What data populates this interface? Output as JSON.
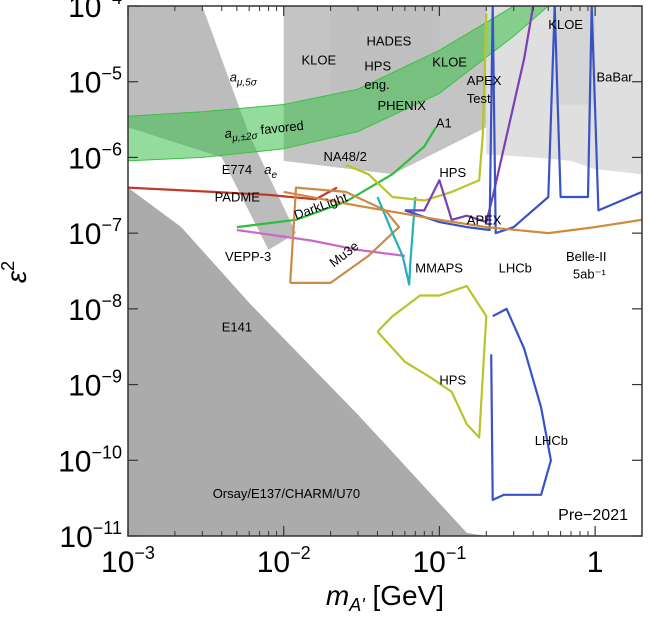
{
  "chart_data": {
    "type": "area",
    "title": "",
    "xlabel_symbol": "m",
    "xlabel_sub": "A'",
    "xlabel_unit": " [GeV]",
    "ylabel_symbol": "ε",
    "ylabel_sup": "2",
    "xscale": "log",
    "yscale": "log",
    "xlim": [
      0.001,
      2
    ],
    "ylim": [
      1e-11,
      0.0001
    ],
    "x_ticks": [
      {
        "value": 0.001,
        "base": "10",
        "exp": "−3"
      },
      {
        "value": 0.01,
        "base": "10",
        "exp": "−2"
      },
      {
        "value": 0.1,
        "base": "10",
        "exp": "−1"
      },
      {
        "value": 1,
        "base": "1",
        "exp": ""
      }
    ],
    "y_ticks": [
      {
        "value": 1e-11,
        "base": "10",
        "exp": "−11"
      },
      {
        "value": 1e-10,
        "base": "10",
        "exp": "−10"
      },
      {
        "value": 1e-09,
        "base": "10",
        "exp": "−9"
      },
      {
        "value": 1e-08,
        "base": "10",
        "exp": "−8"
      },
      {
        "value": 1e-07,
        "base": "10",
        "exp": "−7"
      },
      {
        "value": 1e-06,
        "base": "10",
        "exp": "−6"
      },
      {
        "value": 1e-05,
        "base": "10",
        "exp": "−5"
      },
      {
        "value": 0.0001,
        "base": "10",
        "exp": "−4"
      }
    ],
    "corner_label": "Pre−2021",
    "regions": [
      {
        "name": "Orsay/E137/CHARM/U70",
        "color": "#8f8f8f",
        "style": "fill",
        "note": "beam dump (lower-left gray band)",
        "points": [
          [
            0.001,
            1e-11
          ],
          [
            0.001,
            4e-07
          ],
          [
            0.0022,
            1.2e-07
          ],
          [
            0.006,
            1.2e-08
          ],
          [
            0.03,
            4e-10
          ],
          [
            0.15,
            1.1e-11
          ],
          [
            0.2,
            1e-11
          ]
        ]
      },
      {
        "name": "E141",
        "color": "#a6a6a6",
        "style": "fill",
        "points": [
          [
            0.001,
            0.0001
          ],
          [
            0.001,
            2.5e-06
          ],
          [
            0.004,
            1e-06
          ],
          [
            0.008,
            6e-08
          ],
          [
            0.012,
            1e-07
          ],
          [
            0.006,
            2e-06
          ],
          [
            0.003,
            0.0001
          ]
        ]
      },
      {
        "name": "KLOE",
        "color": "#b0b0b0",
        "style": "fill",
        "points": [
          [
            0.01,
            0.0001
          ],
          [
            0.01,
            9e-07
          ],
          [
            0.05,
            6e-07
          ],
          [
            0.2,
            2.5e-06
          ],
          [
            0.2,
            0.0001
          ]
        ]
      },
      {
        "name": "HADES",
        "color": "#bfbfbf",
        "style": "fill",
        "points": [
          [
            0.02,
            0.0001
          ],
          [
            0.02,
            7e-06
          ],
          [
            0.06,
            5e-06
          ],
          [
            0.1,
            8e-06
          ],
          [
            0.1,
            0.0001
          ]
        ]
      },
      {
        "name": "KLOE",
        "color": "#c8c8c8",
        "style": "fill",
        "note": "high-mass region",
        "points": [
          [
            0.55,
            0.0001
          ],
          [
            0.55,
            5e-06
          ],
          [
            1.0,
            5e-06
          ],
          [
            1.0,
            0.0001
          ]
        ]
      },
      {
        "name": "BaBar",
        "color": "#d4d4d4",
        "style": "fill",
        "points": [
          [
            0.2,
            1.1e-06
          ],
          [
            0.4,
            1e-06
          ],
          [
            0.7,
            9e-07
          ],
          [
            1.0,
            7e-07
          ],
          [
            2.0,
            6e-07
          ],
          [
            2.0,
            0.0001
          ],
          [
            0.2,
            0.0001
          ]
        ]
      }
    ],
    "series": [
      {
        "name": "a_μ,±2σ favored",
        "color": "#3cbf4a",
        "style": "band",
        "lower": [
          [
            0.001,
            9e-07
          ],
          [
            0.003,
            1e-06
          ],
          [
            0.01,
            1.3e-06
          ],
          [
            0.03,
            2.2e-06
          ],
          [
            0.1,
            7e-06
          ],
          [
            0.3,
            4e-05
          ],
          [
            0.5,
            0.0001
          ]
        ],
        "upper": [
          [
            0.001,
            3.5e-06
          ],
          [
            0.003,
            4e-06
          ],
          [
            0.01,
            5e-06
          ],
          [
            0.03,
            8e-06
          ],
          [
            0.1,
            2.6e-05
          ],
          [
            0.3,
            0.0001
          ]
        ]
      },
      {
        "name": "PADME",
        "color": "#c0392b",
        "style": "line",
        "points": [
          [
            0.001,
            4e-07
          ],
          [
            0.0035,
            3.5e-07
          ],
          [
            0.008,
            3.2e-07
          ],
          [
            0.016,
            2.8e-07
          ],
          [
            0.022,
            4e-07
          ]
        ]
      },
      {
        "name": "DarkLight",
        "color": "#2bbf3c",
        "style": "line",
        "points": [
          [
            0.005,
            1.2e-07
          ],
          [
            0.012,
            1.5e-07
          ],
          [
            0.025,
            2.6e-07
          ],
          [
            0.05,
            6e-07
          ],
          [
            0.08,
            1.4e-06
          ],
          [
            0.095,
            2.5e-06
          ]
        ]
      },
      {
        "name": "VEPP-3",
        "color": "#cc66cc",
        "style": "line",
        "points": [
          [
            0.005,
            1.1e-07
          ],
          [
            0.015,
            8e-08
          ],
          [
            0.03,
            6e-08
          ],
          [
            0.06,
            5e-08
          ]
        ]
      },
      {
        "name": "Mu3e",
        "color": "#c98b4a",
        "style": "line",
        "points": [
          [
            0.011,
            2.2e-08
          ],
          [
            0.02,
            2.2e-08
          ],
          [
            0.035,
            5e-08
          ],
          [
            0.055,
            1.2e-07
          ],
          [
            0.045,
            2e-07
          ],
          [
            0.025,
            3.5e-07
          ],
          [
            0.012,
            4e-07
          ],
          [
            0.011,
            2.2e-08
          ]
        ]
      },
      {
        "name": "MMAPS",
        "color": "#22b1b8",
        "style": "line",
        "points": [
          [
            0.04,
            3e-07
          ],
          [
            0.05,
            1e-07
          ],
          [
            0.058,
            5e-08
          ],
          [
            0.064,
            2.1e-08
          ],
          [
            0.065,
            4e-08
          ],
          [
            0.07,
            3e-07
          ]
        ]
      },
      {
        "name": "HPS",
        "color": "#b7c42a",
        "style": "line",
        "note": "upper contour",
        "points": [
          [
            0.025,
            8e-07
          ],
          [
            0.035,
            6e-07
          ],
          [
            0.05,
            3e-07
          ],
          [
            0.08,
            2.7e-07
          ],
          [
            0.12,
            3.5e-07
          ],
          [
            0.18,
            5e-07
          ],
          [
            0.19,
            2e-06
          ],
          [
            0.2,
            8e-05
          ]
        ]
      },
      {
        "name": "HPS",
        "color": "#b7c42a",
        "style": "line",
        "note": "lower islands",
        "points": [
          [
            0.04,
            5e-09
          ],
          [
            0.05,
            8e-09
          ],
          [
            0.075,
            1.5e-08
          ],
          [
            0.1,
            1.5e-08
          ],
          [
            0.15,
            2e-08
          ],
          [
            0.2,
            8e-09
          ],
          [
            0.18,
            2e-10
          ],
          [
            0.15,
            3e-10
          ],
          [
            0.12,
            8e-10
          ],
          [
            0.09,
            1.2e-09
          ],
          [
            0.06,
            2e-09
          ],
          [
            0.04,
            5e-09
          ]
        ]
      },
      {
        "name": "APEX",
        "color": "#7b3fb5",
        "style": "line",
        "points": [
          [
            0.06,
            2e-07
          ],
          [
            0.08,
            2e-07
          ],
          [
            0.1,
            5e-07
          ],
          [
            0.12,
            1.5e-07
          ],
          [
            0.15,
            1.7e-07
          ],
          [
            0.2,
            1.4e-07
          ],
          [
            0.22,
            3e-07
          ],
          [
            0.35,
            2e-05
          ],
          [
            0.4,
            0.0001
          ]
        ]
      },
      {
        "name": "LHCb",
        "color": "#3a52c7",
        "style": "line",
        "points": [
          [
            0.06,
            2e-07
          ],
          [
            0.1,
            1.4e-07
          ],
          [
            0.15,
            1.2e-07
          ],
          [
            0.21,
            1.1e-07
          ],
          [
            0.22,
            0.0001
          ],
          [
            0.23,
            1e-07
          ],
          [
            0.3,
            1.2e-07
          ],
          [
            0.5,
            3e-07
          ],
          [
            0.55,
            0.0001
          ],
          [
            0.6,
            3e-07
          ],
          [
            0.9,
            3e-07
          ],
          [
            0.95,
            0.0001
          ],
          [
            1.05,
            2e-07
          ],
          [
            2.0,
            3.5e-07
          ]
        ]
      },
      {
        "name": "LHCb",
        "color": "#3a52c7",
        "style": "line",
        "note": "lower loop",
        "points": [
          [
            0.215,
            2.5e-09
          ],
          [
            0.22,
            3e-11
          ],
          [
            0.26,
            3.5e-11
          ],
          [
            0.45,
            3.5e-11
          ],
          [
            0.52,
            1e-10
          ],
          [
            0.45,
            5e-10
          ],
          [
            0.35,
            3e-09
          ],
          [
            0.27,
            1e-08
          ],
          [
            0.22,
            8e-09
          ]
        ]
      },
      {
        "name": "Belle-II 5ab⁻¹",
        "color": "#d08a3f",
        "style": "line",
        "points": [
          [
            0.01,
            3.5e-07
          ],
          [
            0.03,
            2.3e-07
          ],
          [
            0.1,
            1.5e-07
          ],
          [
            0.2,
            1.2e-07
          ],
          [
            0.5,
            1e-07
          ],
          [
            1.0,
            1.2e-07
          ],
          [
            2.0,
            1.5e-07
          ]
        ]
      }
    ],
    "annotations": [
      {
        "text": "KLOE",
        "x": 0.013,
        "y": 1.7e-05,
        "color": "#000000"
      },
      {
        "text": "HADES",
        "x": 0.034,
        "y": 3e-05,
        "color": "#000000"
      },
      {
        "text": "HPS",
        "x": 0.033,
        "y": 1.4e-05,
        "color": "#000000"
      },
      {
        "text": "eng.",
        "x": 0.033,
        "y": 8e-06,
        "color": "#000000"
      },
      {
        "text": "KLOE",
        "x": 0.09,
        "y": 1.6e-05,
        "color": "#000000"
      },
      {
        "text": "APEX",
        "x": 0.15,
        "y": 9e-06,
        "color": "#000000"
      },
      {
        "text": "Test",
        "x": 0.15,
        "y": 5.2e-06,
        "color": "#000000"
      },
      {
        "text": "PHENIX",
        "x": 0.04,
        "y": 4.2e-06,
        "color": "#000000"
      },
      {
        "text": "A1",
        "x": 0.095,
        "y": 2.5e-06,
        "color": "#000000"
      },
      {
        "text": "KLOE",
        "x": 0.5,
        "y": 5e-05,
        "color": "#000000"
      },
      {
        "text": "BaBar",
        "x": 1.02,
        "y": 1e-05,
        "color": "#000000"
      },
      {
        "text": "NA48/2",
        "x": 0.018,
        "y": 9e-07,
        "color": "#000000"
      },
      {
        "text": "E774",
        "x": 0.004,
        "y": 6e-07,
        "color": "#000000"
      },
      {
        "text": "E141",
        "x": 0.004,
        "y": 5e-09,
        "color": "#000000"
      },
      {
        "text": "HPS",
        "x": 0.1,
        "y": 5.5e-07,
        "color": "#8f9a12"
      },
      {
        "text": "APEX",
        "x": 0.15,
        "y": 1.3e-07,
        "color": "#7b3fb5"
      },
      {
        "text": "LHCb",
        "x": 0.24,
        "y": 3e-08,
        "color": "#3a52c7"
      },
      {
        "text": "Belle-II",
        "x": 0.65,
        "y": 4.3e-08,
        "color": "#b0702a"
      },
      {
        "text": "5ab⁻¹",
        "x": 0.72,
        "y": 2.5e-08,
        "color": "#b0702a"
      },
      {
        "text": "PADME",
        "x": 0.0036,
        "y": 2.6e-07,
        "color": "#c0392b"
      },
      {
        "text": "VEPP-3",
        "x": 0.0042,
        "y": 4.3e-08,
        "color": "#cc66cc"
      },
      {
        "text": "MMAPS",
        "x": 0.07,
        "y": 3e-08,
        "color": "#1b98a0"
      },
      {
        "text": "HPS",
        "x": 0.1,
        "y": 1e-09,
        "color": "#8f9a12"
      },
      {
        "text": "LHCb",
        "x": 0.41,
        "y": 1.6e-10,
        "color": "#3a52c7"
      },
      {
        "text": "Orsay/E137/CHARM/U70",
        "x": 0.0035,
        "y": 3.2e-11,
        "color": "#000000"
      },
      {
        "text": "DarkLight",
        "x": 0.012,
        "y": 1.5e-07,
        "color": "#2a9f35",
        "rotate": -20
      },
      {
        "text": "Mu3e",
        "x": 0.021,
        "y": 3.5e-08,
        "color": "#b87a3a",
        "rotate": -38
      },
      {
        "text": "a_e",
        "x": 0.0075,
        "y": 6e-07,
        "color": "#000000"
      },
      {
        "text": "a_μ,5σ",
        "x": 0.0045,
        "y": 1e-05,
        "color": "#000000"
      },
      {
        "text": "a_μ,±2σ favored",
        "x": 0.0042,
        "y": 1.8e-06,
        "color": "#1e7a26",
        "rotate": -6
      }
    ]
  }
}
